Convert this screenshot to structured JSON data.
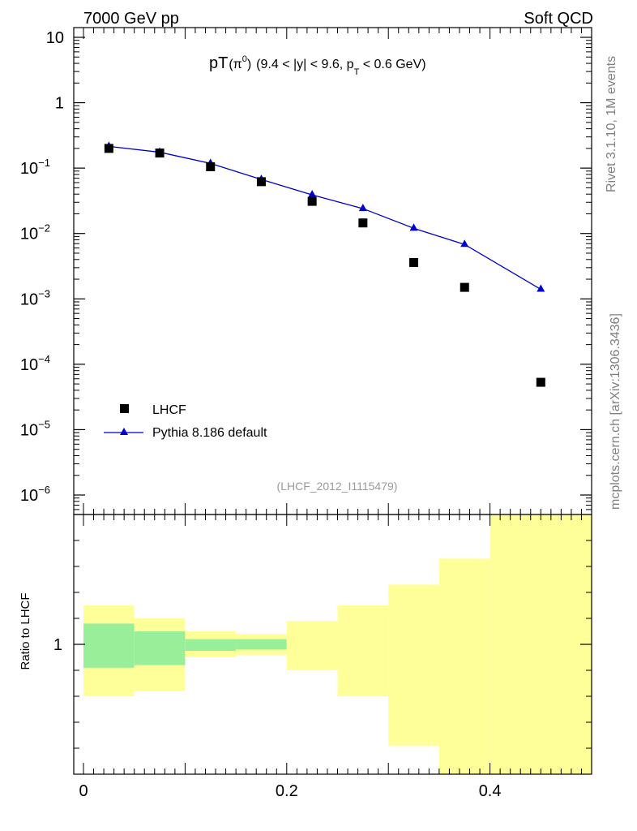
{
  "header": {
    "left": "7000 GeV pp",
    "right": "Soft QCD"
  },
  "side_labels": {
    "rivet": "Rivet 3.1.10,  1M events",
    "mcplots": "mcplots.cern.ch [arXiv:1306.3436]"
  },
  "chart_data": [
    {
      "type": "scatter",
      "title_main": "pT",
      "title_particle": "(π",
      "title_particle_sup": "0",
      "title_particle_close": ")",
      "title_cuts": "(9.4 < |y| < 9.6, p",
      "title_cuts_sub": "T",
      "title_cuts_end": " < 0.6 GeV)",
      "analysis_id": "(LHCF_2012_I1115479)",
      "y_scale": "log",
      "ylim": [
        5e-07,
        15
      ],
      "xlim": [
        -0.02,
        0.5
      ],
      "y_ticks": [
        {
          "base": "10",
          "exp": "",
          "value": 10
        },
        {
          "base": "1",
          "exp": "",
          "value": 1
        },
        {
          "base": "10",
          "exp": "−1",
          "value": 0.1
        },
        {
          "base": "10",
          "exp": "−2",
          "value": 0.01
        },
        {
          "base": "10",
          "exp": "−3",
          "value": 0.001
        },
        {
          "base": "10",
          "exp": "−4",
          "value": 0.0001
        },
        {
          "base": "10",
          "exp": "−5",
          "value": 1e-05
        },
        {
          "base": "10",
          "exp": "−6",
          "value": 1e-06
        }
      ],
      "series": [
        {
          "name": "LHCF",
          "marker": "square",
          "color": "#000000",
          "x": [
            0.025,
            0.075,
            0.125,
            0.175,
            0.225,
            0.275,
            0.325,
            0.375,
            0.45
          ],
          "y": [
            0.2,
            0.17,
            0.105,
            0.062,
            0.031,
            0.0145,
            0.0036,
            0.0015,
            5.3e-05
          ]
        },
        {
          "name": "Pythia 8.186 default",
          "marker": "triangle",
          "color": "#0000cc",
          "x": [
            0.025,
            0.075,
            0.125,
            0.175,
            0.225,
            0.275,
            0.325,
            0.375,
            0.45
          ],
          "y": [
            0.215,
            0.175,
            0.118,
            0.067,
            0.039,
            0.024,
            0.012,
            0.0068,
            0.0014
          ]
        }
      ],
      "legend_placement": "bottom-left"
    },
    {
      "type": "area",
      "ylabel": "Ratio to LHCF",
      "x_ticks": [
        "0",
        "0.2",
        "0.4"
      ],
      "x_tick_values": [
        0,
        0.2,
        0.4
      ],
      "y_ticks": [
        "1"
      ],
      "y_tick_values": [
        1
      ],
      "ylim": [
        0.5,
        1.5
      ],
      "bins": [
        {
          "x0": 0.0,
          "x1": 0.05,
          "yellow": [
            0.8,
            1.15
          ],
          "green": [
            0.91,
            1.08
          ]
        },
        {
          "x0": 0.05,
          "x1": 0.1,
          "yellow": [
            0.82,
            1.1
          ],
          "green": [
            0.92,
            1.05
          ]
        },
        {
          "x0": 0.1,
          "x1": 0.15,
          "yellow": [
            0.95,
            1.05
          ],
          "green": [
            0.975,
            1.02
          ]
        },
        {
          "x0": 0.15,
          "x1": 0.2,
          "yellow": [
            0.96,
            1.04
          ],
          "green": [
            0.98,
            1.02
          ]
        },
        {
          "x0": 0.2,
          "x1": 0.25,
          "yellow": [
            0.9,
            1.09
          ],
          "green": null
        },
        {
          "x0": 0.25,
          "x1": 0.3,
          "yellow": [
            0.8,
            1.15
          ],
          "green": null
        },
        {
          "x0": 0.3,
          "x1": 0.35,
          "yellow": [
            0.61,
            1.23
          ],
          "green": null
        },
        {
          "x0": 0.35,
          "x1": 0.4,
          "yellow": [
            0.5,
            1.33
          ],
          "green": null
        },
        {
          "x0": 0.4,
          "x1": 0.5,
          "yellow": [
            0.5,
            1.5
          ],
          "green": null
        }
      ],
      "band_colors": {
        "yellow": "#ffff99",
        "green": "#99ee99"
      }
    }
  ]
}
